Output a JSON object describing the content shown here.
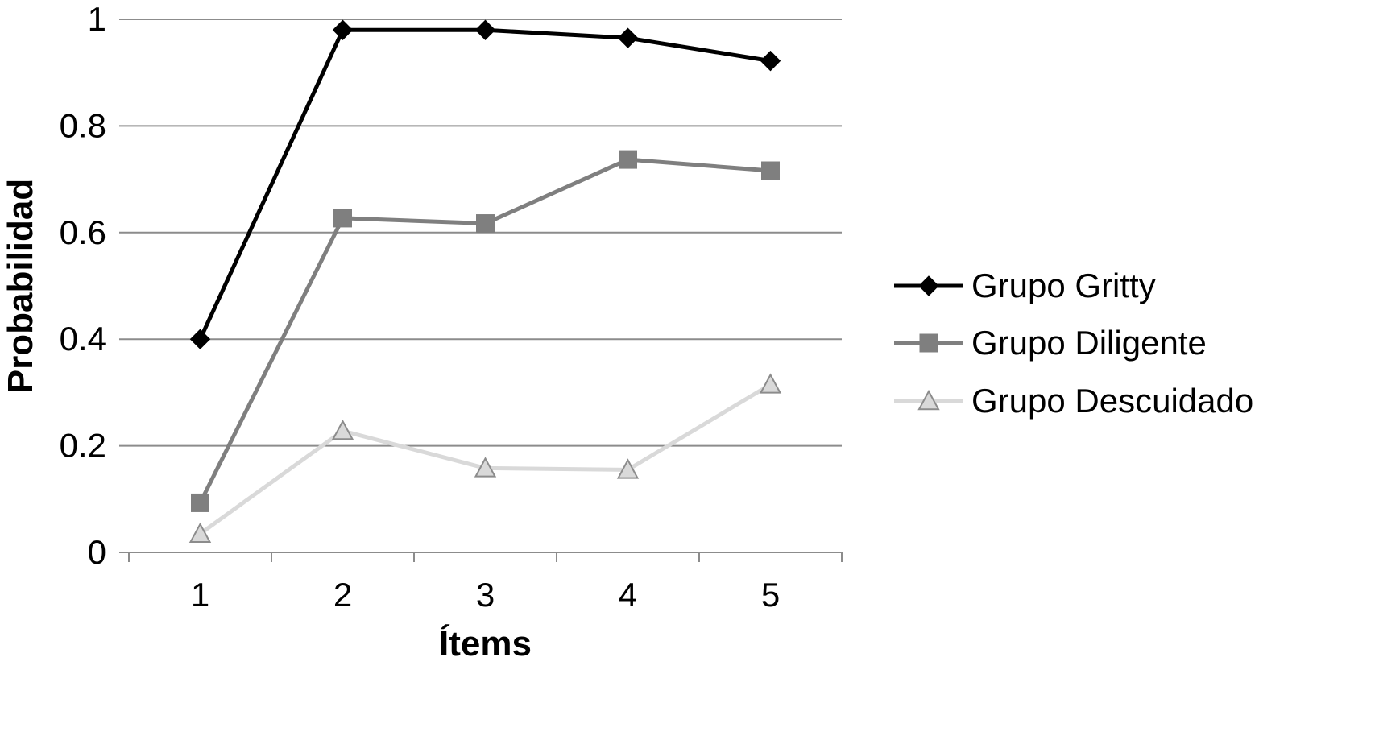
{
  "chart_data": {
    "type": "line",
    "title": "",
    "xlabel": "Ítems",
    "ylabel": "Probabilidad",
    "categories": [
      "1",
      "2",
      "3",
      "4",
      "5"
    ],
    "ylim": [
      0,
      1
    ],
    "yticks": [
      "0",
      "0.2",
      "0.4",
      "0.6",
      "0.8",
      "1"
    ],
    "grid": true,
    "legend_position": "right",
    "series": [
      {
        "name": "Grupo Gritty",
        "values": [
          0.4,
          0.98,
          0.98,
          0.965,
          0.922
        ],
        "color": "#000000",
        "marker": "diamond"
      },
      {
        "name": "Grupo Diligente",
        "values": [
          0.093,
          0.627,
          0.617,
          0.737,
          0.716
        ],
        "color": "#7f7f7f",
        "marker": "square"
      },
      {
        "name": "Grupo Descuidado",
        "values": [
          0.035,
          0.228,
          0.158,
          0.155,
          0.315
        ],
        "color": "#d9d9d9",
        "marker": "triangle"
      }
    ]
  }
}
